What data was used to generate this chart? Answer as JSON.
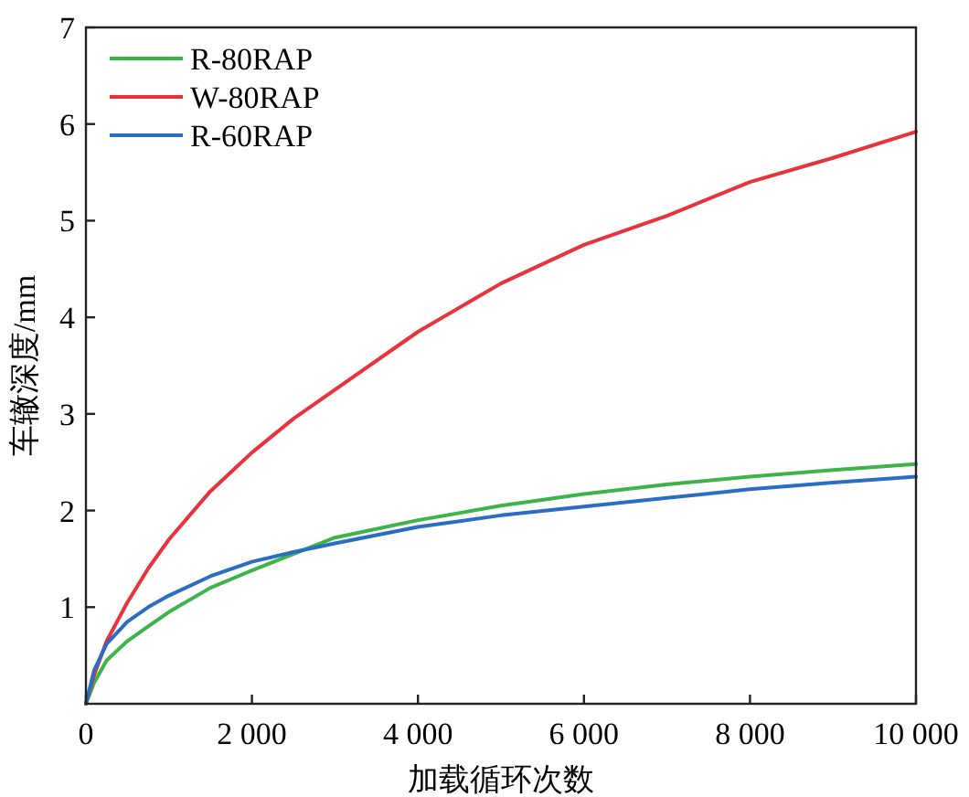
{
  "chart_data": {
    "type": "line",
    "xlabel": "加载循环次数",
    "ylabel": "车辙深度/mm",
    "x": [
      0,
      100,
      250,
      500,
      750,
      1000,
      1500,
      2000,
      2500,
      3000,
      4000,
      5000,
      6000,
      7000,
      8000,
      9000,
      10000
    ],
    "series": [
      {
        "name": "R-80RAP",
        "color": "#3cb44a",
        "values": [
          0,
          0.22,
          0.45,
          0.65,
          0.8,
          0.95,
          1.2,
          1.38,
          1.55,
          1.72,
          1.9,
          2.05,
          2.17,
          2.27,
          2.35,
          2.42,
          2.48
        ]
      },
      {
        "name": "W-80RAP",
        "color": "#e8323c",
        "values": [
          0,
          0.3,
          0.65,
          1.05,
          1.4,
          1.7,
          2.2,
          2.6,
          2.95,
          3.25,
          3.85,
          4.35,
          4.75,
          5.05,
          5.4,
          5.65,
          5.92
        ]
      },
      {
        "name": "R-60RAP",
        "color": "#2b6cc4",
        "values": [
          0,
          0.35,
          0.62,
          0.85,
          1.0,
          1.12,
          1.32,
          1.47,
          1.57,
          1.66,
          1.83,
          1.95,
          2.04,
          2.13,
          2.22,
          2.29,
          2.35
        ]
      }
    ],
    "xlim": [
      0,
      10000
    ],
    "ylim": [
      0,
      7
    ],
    "xticks": [
      0,
      {
        "value": 2000,
        "label": "2 000"
      },
      {
        "value": 4000,
        "label": "4 000"
      },
      {
        "value": 6000,
        "label": "6 000"
      },
      {
        "value": 8000,
        "label": "8 000"
      },
      {
        "value": 10000,
        "label": "10 000"
      }
    ],
    "yticks": [
      1,
      2,
      3,
      4,
      5,
      6,
      7
    ],
    "legend": "top left"
  }
}
